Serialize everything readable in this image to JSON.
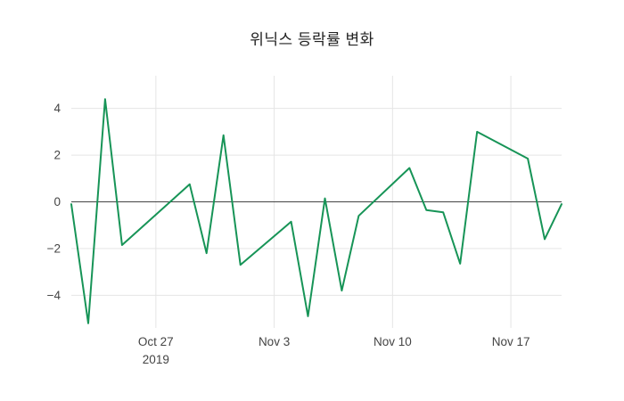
{
  "title": "위닉스 등락률 변화",
  "chart_data": {
    "type": "line",
    "series_name": "등락률",
    "x": [
      "2019-10-22",
      "2019-10-23",
      "2019-10-24",
      "2019-10-25",
      "2019-10-28",
      "2019-10-29",
      "2019-10-30",
      "2019-10-31",
      "2019-11-01",
      "2019-11-04",
      "2019-11-05",
      "2019-11-06",
      "2019-11-07",
      "2019-11-08",
      "2019-11-11",
      "2019-11-12",
      "2019-11-13",
      "2019-11-14",
      "2019-11-15",
      "2019-11-18",
      "2019-11-19",
      "2019-11-20"
    ],
    "values": [
      -0.1,
      -5.2,
      4.4,
      -1.85,
      0.1,
      0.75,
      -2.2,
      2.85,
      -2.7,
      -0.85,
      -4.9,
      0.15,
      -3.8,
      -0.6,
      1.45,
      -0.35,
      -0.45,
      -2.65,
      3.0,
      1.85,
      -1.6,
      -0.1
    ],
    "xlabel": "",
    "ylabel": "",
    "ylim": [
      -5.4,
      5.4
    ],
    "y_ticks": [
      {
        "value": -4,
        "label": "−4"
      },
      {
        "value": -2,
        "label": "−2"
      },
      {
        "value": 0,
        "label": "0"
      },
      {
        "value": 2,
        "label": "2"
      },
      {
        "value": 4,
        "label": "4"
      }
    ],
    "x_ticks": [
      {
        "date": "2019-10-27",
        "label": "Oct 27",
        "sublabel": "2019"
      },
      {
        "date": "2019-11-03",
        "label": "Nov 3",
        "sublabel": ""
      },
      {
        "date": "2019-11-10",
        "label": "Nov 10",
        "sublabel": ""
      },
      {
        "date": "2019-11-17",
        "label": "Nov 17",
        "sublabel": ""
      }
    ],
    "grid": true,
    "zero_line": true,
    "legend": "none",
    "line_color": "#179457",
    "grid_color": "#e5e5e5",
    "zero_line_color": "#444444",
    "tick_color": "#444444"
  }
}
